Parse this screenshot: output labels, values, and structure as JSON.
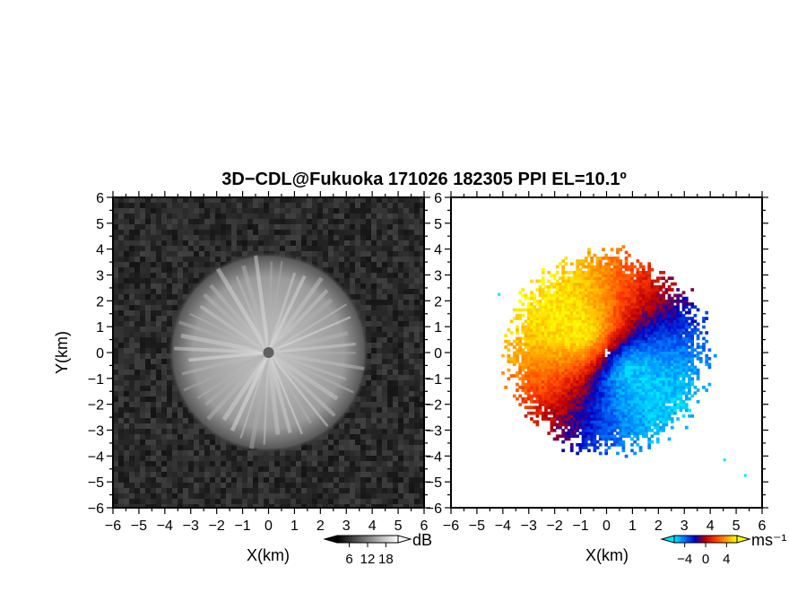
{
  "title": "3D−CDL@Fukuoka 171026 182305 PPI EL=10.1º",
  "chart_data": [
    {
      "type": "heatmap",
      "name": "reflectivity",
      "xlabel": "X(km)",
      "ylabel": "Y(km)",
      "xlim": [
        -6,
        6
      ],
      "ylim": [
        -6,
        6
      ],
      "x_ticks": [
        "−6",
        "−5",
        "−4",
        "−3",
        "−2",
        "−1",
        "0",
        "1",
        "2",
        "3",
        "4",
        "5",
        "6"
      ],
      "y_ticks": [
        "6",
        "5",
        "4",
        "3",
        "2",
        "1",
        "0",
        "−1",
        "−2",
        "−3",
        "−4",
        "−5",
        "−6"
      ],
      "signal_radius_km": 3.6,
      "colorbar": {
        "unit": "dB",
        "ticks": [
          "6",
          "12",
          "18"
        ],
        "range": [
          2,
          22
        ],
        "colors": [
          "#000000",
          "#ffffff"
        ]
      }
    },
    {
      "type": "heatmap",
      "name": "doppler-velocity",
      "xlabel": "X(km)",
      "ylabel": "",
      "xlim": [
        -6,
        6
      ],
      "ylim": [
        -6,
        6
      ],
      "x_ticks": [
        "−6",
        "−5",
        "−4",
        "−3",
        "−2",
        "−1",
        "0",
        "1",
        "2",
        "3",
        "4",
        "5",
        "6"
      ],
      "y_ticks": [
        "6",
        "5",
        "4",
        "3",
        "2",
        "1",
        "0",
        "−1",
        "−2",
        "−3",
        "−4",
        "−5",
        "−6"
      ],
      "signal_radius_km": 3.8,
      "colorbar": {
        "unit": "ms⁻¹",
        "ticks": [
          "−4",
          "0",
          "4"
        ],
        "range": [
          -6,
          6
        ],
        "colors": [
          "#00e5ff",
          "#0070ff",
          "#0000c0",
          "#c00000",
          "#ff4000",
          "#ffa000",
          "#ffff00"
        ]
      }
    }
  ]
}
